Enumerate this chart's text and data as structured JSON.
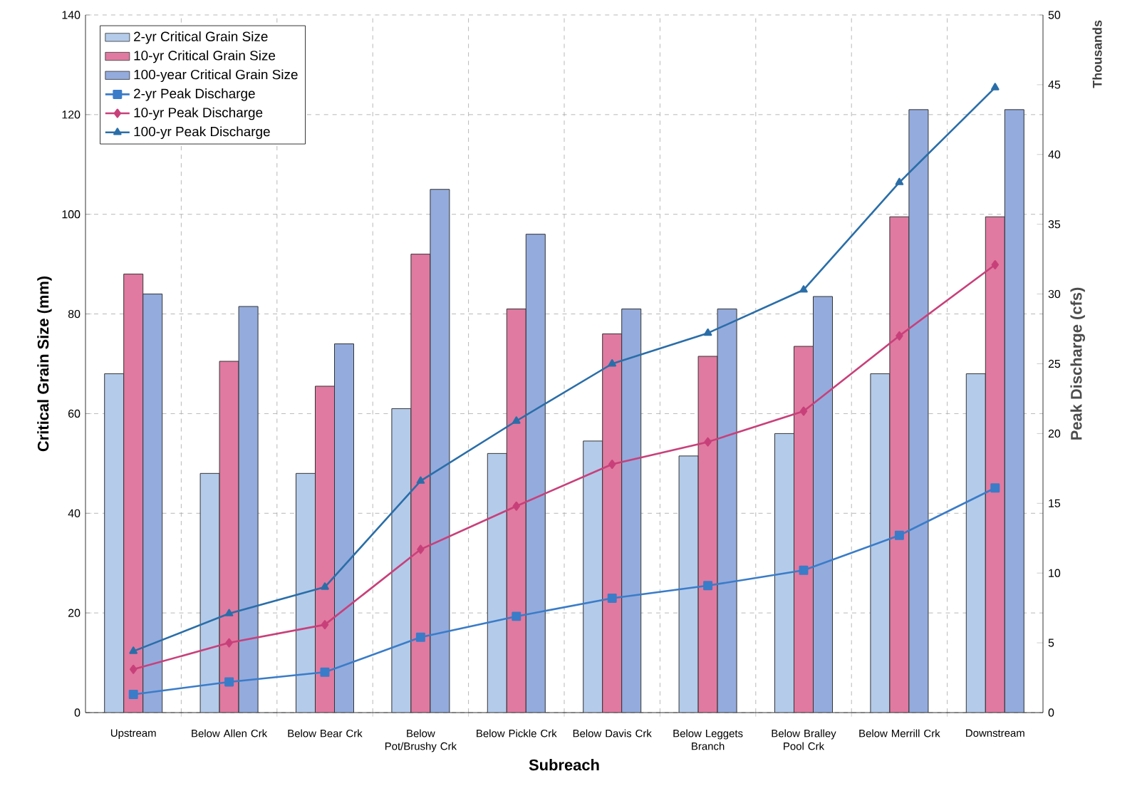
{
  "chart_data": {
    "type": "bar",
    "xlabel": "Subreach",
    "ylabel": "Critical Grain Size (mm)",
    "y2label": "Peak Discharge (cfs)",
    "annotations": [
      "Thousands"
    ],
    "categories": [
      "Upstream",
      "Below Allen Crk",
      "Below Bear Crk",
      "Below Pot/Brushy Crk",
      "Below Pickle Crk",
      "Below Davis Crk",
      "Below Leggets Branch",
      "Below Bralley Pool Crk",
      "Below Merrill Crk",
      "Downstream"
    ],
    "series": [
      {
        "name": "2-yr Critical Grain Size",
        "color": "#b4cbea",
        "values": [
          68,
          48,
          48,
          61,
          52,
          54.5,
          51.5,
          56,
          68,
          68
        ]
      },
      {
        "name": "10-yr Critical Grain Size",
        "color": "#e07aa0",
        "values": [
          88,
          70.5,
          65.5,
          92,
          81,
          76,
          71.5,
          73.5,
          99.5,
          99.5
        ]
      },
      {
        "name": "100-year Critical Grain Size",
        "color": "#94abdd",
        "values": [
          84,
          81.5,
          74,
          105,
          96,
          81,
          81,
          83.5,
          121,
          121
        ]
      },
      {
        "name": "2-yr Peak Discharge",
        "type": "line",
        "axis": "y2",
        "marker": "square",
        "color": "#3a7cc8",
        "values": [
          1.3,
          2.2,
          2.9,
          5.4,
          6.9,
          8.2,
          9.1,
          10.2,
          12.7,
          16.1
        ]
      },
      {
        "name": "10-yr Peak Discharge",
        "type": "line",
        "axis": "y2",
        "marker": "diamond",
        "color": "#c8407a",
        "values": [
          3.1,
          5.0,
          6.3,
          11.7,
          14.8,
          17.8,
          19.4,
          21.6,
          27.0,
          32.1
        ]
      },
      {
        "name": "100-yr Peak Discharge",
        "type": "line",
        "axis": "y2",
        "marker": "triangle",
        "color": "#2a6ea8",
        "values": [
          4.4,
          7.1,
          9.0,
          16.6,
          20.9,
          25.0,
          27.2,
          30.3,
          38.0,
          44.8
        ]
      }
    ],
    "ylim": [
      0,
      140
    ],
    "yticks": [
      0,
      20,
      40,
      60,
      80,
      100,
      120,
      140
    ],
    "y2lim": [
      0,
      50
    ],
    "y2ticks": [
      0,
      5,
      10,
      15,
      20,
      25,
      30,
      35,
      40,
      45,
      50
    ],
    "grid": true,
    "legend": "top left"
  }
}
